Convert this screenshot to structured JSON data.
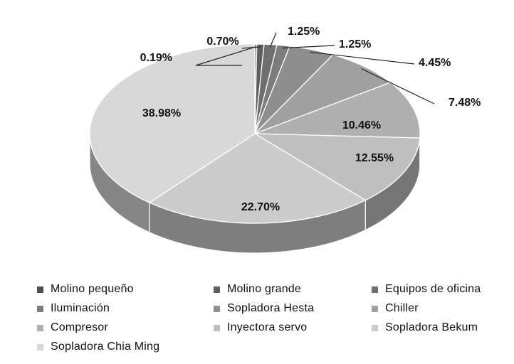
{
  "chart_data": {
    "type": "pie",
    "style": "3d",
    "title": "",
    "legend_position": "bottom",
    "slices": [
      {
        "label": "Molino pequeño",
        "value": 0.19,
        "display": "0.19%",
        "color": "#4f4f4f"
      },
      {
        "label": "Molino grande",
        "value": 0.7,
        "display": "0.70%",
        "color": "#5e5e5e"
      },
      {
        "label": "Equipos de oficina",
        "value": 1.25,
        "display": "1.25%",
        "color": "#6e6e6e"
      },
      {
        "label": "Iluminación",
        "value": 1.25,
        "display": "1.25%",
        "color": "#7c7c7c"
      },
      {
        "label": "Sopladora Hesta",
        "value": 4.45,
        "display": "4.45%",
        "color": "#8e8e8e"
      },
      {
        "label": "Chiller",
        "value": 7.48,
        "display": "7.48%",
        "color": "#a0a0a0"
      },
      {
        "label": "Compresor",
        "value": 10.46,
        "display": "10.46%",
        "color": "#b0b0b0"
      },
      {
        "label": "Inyectora servo",
        "value": 12.55,
        "display": "12.55%",
        "color": "#bfbfbf"
      },
      {
        "label": "Sopladora Bekum",
        "value": 22.7,
        "display": "22.70%",
        "color": "#cccccc"
      },
      {
        "label": "Sopladora Chia Ming",
        "value": 38.98,
        "display": "38.98%",
        "color": "#d8d8d8"
      }
    ]
  }
}
